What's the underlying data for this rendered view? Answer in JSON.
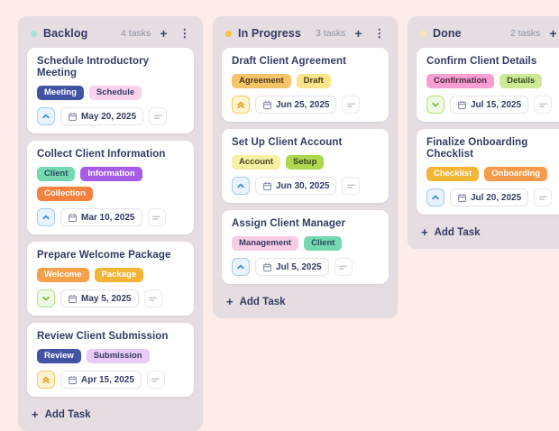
{
  "icons": {
    "plus": "+",
    "menu": "⋮"
  },
  "priority_styles": {
    "high": {
      "bg": "#fdf3cf",
      "border": "#f0cd62",
      "color": "#e9a62c",
      "glyph": "chevrons-up"
    },
    "medium": {
      "bg": "#e9f3fd",
      "border": "#a3cdf3",
      "color": "#3f8edd",
      "glyph": "chevron-up"
    },
    "low": {
      "bg": "#effae2",
      "border": "#b7e083",
      "color": "#7cb83f",
      "glyph": "chevron-down"
    }
  },
  "board": {
    "columns": [
      {
        "name": "Backlog",
        "dot_color": "#a3e6d8",
        "count_label": "4 tasks",
        "add_task_label": "Add Task",
        "cards": [
          {
            "title": "Schedule Introductory Meeting",
            "tags": [
              {
                "label": "Meeting",
                "bg": "#4353a4",
                "fg": "#ffffff"
              },
              {
                "label": "Schedule",
                "bg": "#f9d2ee",
                "fg": "#333b63"
              }
            ],
            "priority": "medium",
            "due_date": "May 20, 2025"
          },
          {
            "title": "Collect Client Information",
            "tags": [
              {
                "label": "Client",
                "bg": "#74d8b0",
                "fg": "#2a4a5e"
              },
              {
                "label": "Information",
                "bg": "#a75ce8",
                "fg": "#ffffff"
              },
              {
                "label": "Collection",
                "bg": "#f5813f",
                "fg": "#ffffff"
              }
            ],
            "priority": "medium",
            "due_date": "Mar 10, 2025"
          },
          {
            "title": "Prepare Welcome Package",
            "tags": [
              {
                "label": "Welcome",
                "bg": "#f5a04a",
                "fg": "#ffffff"
              },
              {
                "label": "Package",
                "bg": "#f2b534",
                "fg": "#ffffff"
              }
            ],
            "priority": "low",
            "due_date": "May 5, 2025"
          },
          {
            "title": "Review Client Submission",
            "tags": [
              {
                "label": "Review",
                "bg": "#4353a4",
                "fg": "#ffffff"
              },
              {
                "label": "Submission",
                "bg": "#e8cbf6",
                "fg": "#333b63"
              }
            ],
            "priority": "high",
            "due_date": "Apr 15, 2025"
          }
        ]
      },
      {
        "name": "In Progress",
        "dot_color": "#f3c43e",
        "count_label": "3 tasks",
        "add_task_label": "Add Task",
        "cards": [
          {
            "title": "Draft Client Agreement",
            "tags": [
              {
                "label": "Agreement",
                "bg": "#f5c469",
                "fg": "#4a3a1a"
              },
              {
                "label": "Draft",
                "bg": "#fae58b",
                "fg": "#4a3a1a"
              }
            ],
            "priority": "high",
            "due_date": "Jun 25, 2025"
          },
          {
            "title": "Set Up Client Account",
            "tags": [
              {
                "label": "Account",
                "bg": "#f6f0a3",
                "fg": "#4a4420"
              },
              {
                "label": "Setup",
                "bg": "#aed74f",
                "fg": "#33431a"
              }
            ],
            "priority": "medium",
            "due_date": "Jun 30, 2025"
          },
          {
            "title": "Assign Client Manager",
            "tags": [
              {
                "label": "Management",
                "bg": "#f8cde4",
                "fg": "#333b63"
              },
              {
                "label": "Client",
                "bg": "#74d8b0",
                "fg": "#2a4a5e"
              }
            ],
            "priority": "medium",
            "due_date": "Jul 5, 2025"
          }
        ]
      },
      {
        "name": "Done",
        "dot_color": "#f6e9b2",
        "count_label": "2 tasks",
        "add_task_label": "Add Task",
        "cards": [
          {
            "title": "Confirm Client Details",
            "tags": [
              {
                "label": "Confirmation",
                "bg": "#f79ed2",
                "fg": "#4a2a40"
              },
              {
                "label": "Details",
                "bg": "#cde996",
                "fg": "#3a4a20"
              }
            ],
            "priority": "low",
            "due_date": "Jul 15, 2025"
          },
          {
            "title": "Finalize Onboarding Checklist",
            "tags": [
              {
                "label": "Checklist",
                "bg": "#f2b534",
                "fg": "#ffffff"
              },
              {
                "label": "Onboarding",
                "bg": "#f69b49",
                "fg": "#ffffff"
              }
            ],
            "priority": "medium",
            "due_date": "Jul 20, 2025"
          }
        ]
      }
    ]
  }
}
